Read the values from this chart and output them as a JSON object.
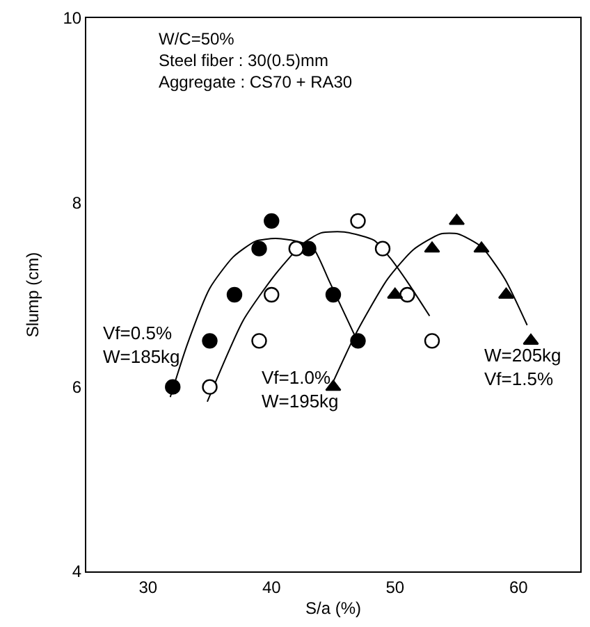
{
  "chart_data": {
    "type": "scatter",
    "xlabel": "S/a (%)",
    "ylabel": "Slump (cm)",
    "xlim": [
      25,
      65
    ],
    "ylim": [
      4,
      10
    ],
    "xticks": [
      30,
      40,
      50,
      60
    ],
    "yticks": [
      4,
      6,
      8,
      10
    ],
    "series": [
      {
        "type": "line",
        "marker": "none",
        "color": "#000000",
        "x": [
          31.8,
          33.2,
          35.0,
          36.9,
          38.7,
          40.3,
          41.7,
          43.3,
          44.7,
          46.7
        ],
        "values": [
          5.89,
          6.47,
          7.07,
          7.41,
          7.58,
          7.61,
          7.59,
          7.52,
          7.14,
          6.57
        ]
      },
      {
        "type": "line",
        "marker": "none",
        "color": "#000000",
        "x": [
          34.8,
          37.7,
          40.3,
          42.5,
          44.0,
          45.9,
          48.3,
          49.6,
          51.1,
          52.8
        ],
        "values": [
          5.84,
          6.72,
          7.22,
          7.55,
          7.67,
          7.68,
          7.59,
          7.4,
          7.12,
          6.77
        ]
      },
      {
        "type": "line",
        "marker": "none",
        "color": "#000000",
        "x": [
          44.7,
          46.8,
          49.4,
          51.5,
          53.7,
          55.1,
          57.0,
          58.9,
          60.7
        ],
        "values": [
          5.97,
          6.57,
          7.17,
          7.49,
          7.66,
          7.66,
          7.52,
          7.17,
          6.67
        ]
      },
      {
        "marker": "circle",
        "color": "#000000",
        "x": [
          32,
          35,
          37,
          39,
          40,
          43,
          45,
          47
        ],
        "values": [
          6.0,
          6.5,
          7.0,
          7.5,
          7.8,
          7.5,
          7.0,
          6.5
        ]
      },
      {
        "marker": "circle",
        "color": "#ffffff",
        "x": [
          35,
          39,
          40,
          42,
          47,
          49,
          51,
          53
        ],
        "values": [
          6.0,
          6.5,
          7.0,
          7.5,
          7.8,
          7.5,
          7.0,
          6.5
        ]
      },
      {
        "marker": "triangle",
        "color": "#000000",
        "x": [
          45,
          50,
          53,
          55,
          57,
          59,
          61
        ],
        "values": [
          6.0,
          7.0,
          7.5,
          7.8,
          7.5,
          7.0,
          6.5
        ]
      }
    ],
    "annotations": [
      "W/C=50%\nSteel fiber : 30(0.5)mm\nAggregate : CS70 + RA30",
      "Vf=0.5%\nW=185kg",
      "Vf=1.0%\nW=195kg",
      "W=205kg\nVf=1.5%"
    ]
  }
}
